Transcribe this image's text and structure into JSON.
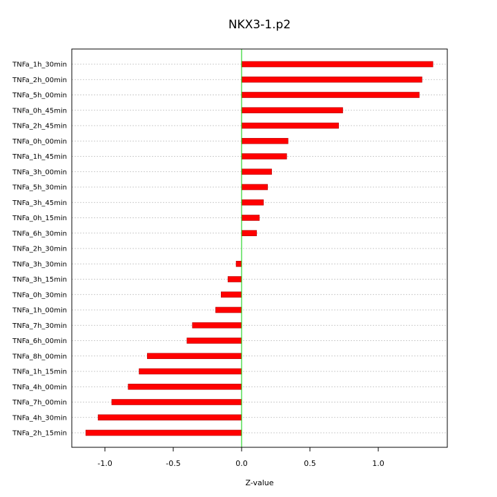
{
  "chart_data": {
    "type": "bar",
    "orientation": "horizontal",
    "title": "NKX3-1.p2",
    "xlabel": "Z-value",
    "ylabel": "",
    "xlim": [
      -1.24,
      1.5
    ],
    "xticks": [
      -1.0,
      -0.5,
      0.0,
      0.5,
      1.0
    ],
    "xtick_labels": [
      "-1.0",
      "-0.5",
      "0.0",
      "0.5",
      "1.0"
    ],
    "grid": "horizontal dotted at each category",
    "zero_line_color": "#00cc00",
    "bar_color": "#ff0000",
    "categories": [
      "TNFa_1h_30min",
      "TNFa_2h_00min",
      "TNFa_5h_00min",
      "TNFa_0h_45min",
      "TNFa_2h_45min",
      "TNFa_0h_00min",
      "TNFa_1h_45min",
      "TNFa_3h_00min",
      "TNFa_5h_30min",
      "TNFa_3h_45min",
      "TNFa_0h_15min",
      "TNFa_6h_30min",
      "TNFa_2h_30min",
      "TNFa_3h_30min",
      "TNFa_3h_15min",
      "TNFa_0h_30min",
      "TNFa_1h_00min",
      "TNFa_7h_30min",
      "TNFa_6h_00min",
      "TNFa_8h_00min",
      "TNFa_1h_15min",
      "TNFa_4h_00min",
      "TNFa_7h_00min",
      "TNFa_4h_30min",
      "TNFa_2h_15min"
    ],
    "values": [
      1.4,
      1.32,
      1.3,
      0.74,
      0.71,
      0.34,
      0.33,
      0.22,
      0.19,
      0.16,
      0.13,
      0.11,
      0.0,
      -0.04,
      -0.1,
      -0.15,
      -0.19,
      -0.36,
      -0.4,
      -0.69,
      -0.75,
      -0.83,
      -0.95,
      -1.05,
      -1.14
    ]
  }
}
